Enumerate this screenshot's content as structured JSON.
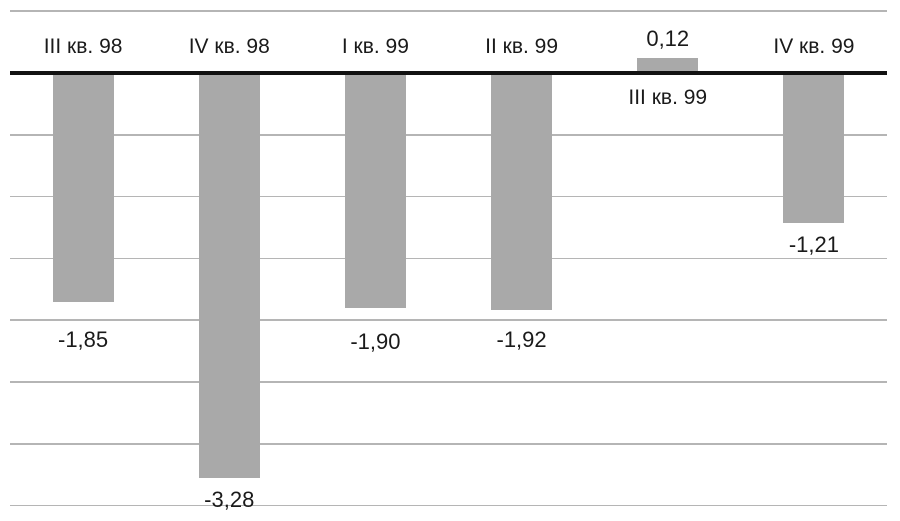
{
  "chart_data": {
    "type": "bar",
    "categories": [
      "III кв. 98",
      "IV кв. 98",
      "I кв. 99",
      "II кв. 99",
      "III кв. 99",
      "IV кв. 99"
    ],
    "values": [
      -1.85,
      -3.28,
      -1.9,
      -1.92,
      0.12,
      -1.21
    ],
    "value_labels": [
      "-1,85",
      "-3,28",
      "-1,90",
      "-1,92",
      "0,12",
      "-1,21"
    ],
    "title": "",
    "xlabel": "",
    "ylabel": "",
    "ylim": [
      -3.5,
      0.5
    ],
    "gridline_step": 0.5,
    "grid": true,
    "legend_position": "none",
    "axis_labels_position": "opposite_side_of_bar",
    "bar_color": "#a9a9a9",
    "gridline_color": "#b5b5b5",
    "axis_color": "#121212",
    "text_color": "#1a1a1a",
    "background_color": "#ffffff"
  }
}
